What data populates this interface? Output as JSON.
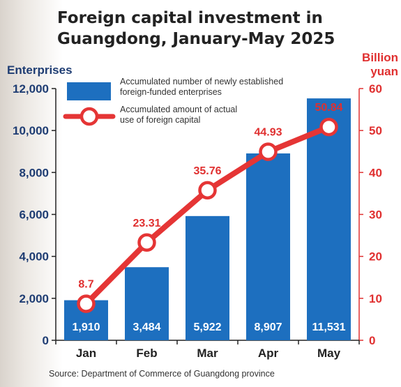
{
  "title_lines": [
    "Foreign capital investment in",
    "Guangdong, January-May 2025"
  ],
  "left_axis_unit": "Enterprises",
  "right_axis_unit_lines": [
    "Billion",
    "yuan"
  ],
  "legend": {
    "bar": "Accumulated number of newly established foreign-funded enterprises",
    "line": "Accumulated amount of actual use of foreign capital"
  },
  "source": "Source: Department of Commerce of Guangdong province",
  "colors": {
    "bar": "#1d6fbf",
    "line": "#e53535",
    "left_axis": "#1f3d73",
    "right_axis": "#e03030"
  },
  "chart_data": {
    "type": "bar+line",
    "categories": [
      "Jan",
      "Feb",
      "Mar",
      "Apr",
      "May"
    ],
    "series": [
      {
        "name": "Accumulated number of newly established foreign-funded enterprises",
        "type": "bar",
        "axis": "left",
        "values": [
          1910,
          3484,
          5922,
          8907,
          11531
        ],
        "labels": [
          "1,910",
          "3,484",
          "5,922",
          "8,907",
          "11,531"
        ]
      },
      {
        "name": "Accumulated amount of actual use of foreign capital",
        "type": "line",
        "axis": "right",
        "values": [
          8.7,
          23.31,
          35.76,
          44.93,
          50.84
        ],
        "labels": [
          "8.7",
          "23.31",
          "35.76",
          "44.93",
          "50.84"
        ]
      }
    ],
    "left_axis": {
      "min": 0,
      "max": 12000,
      "ticks": [
        "0",
        "2,000",
        "4,000",
        "6,000",
        "8,000",
        "10,000",
        "12,000"
      ]
    },
    "right_axis": {
      "min": 0,
      "max": 60,
      "ticks": [
        "0",
        "10",
        "20",
        "30",
        "40",
        "50",
        "60"
      ]
    },
    "grid": false
  }
}
